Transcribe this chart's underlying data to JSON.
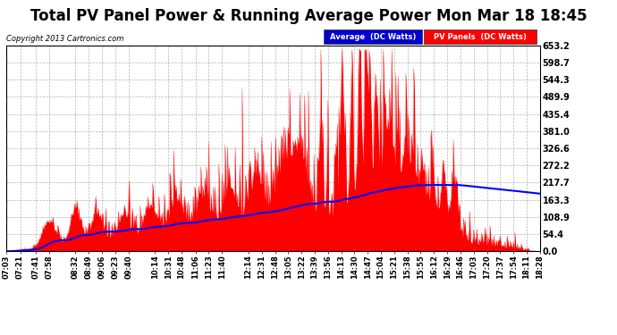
{
  "title": "Total PV Panel Power & Running Average Power Mon Mar 18 18:45",
  "copyright": "Copyright 2013 Cartronics.com",
  "legend_avg": "Average  (DC Watts)",
  "legend_pv": "PV Panels  (DC Watts)",
  "yticks": [
    0.0,
    54.4,
    108.9,
    163.3,
    217.7,
    272.2,
    326.6,
    381.0,
    435.4,
    489.9,
    544.3,
    598.7,
    653.2
  ],
  "ymax": 653.2,
  "ymin": 0.0,
  "bg_color": "#ffffff",
  "plot_bg_color": "#ffffff",
  "grid_color": "#aaaaaa",
  "pv_color": "#ff0000",
  "avg_color": "#0000ff",
  "title_fontsize": 12,
  "xtick_labels": [
    "07:03",
    "07:21",
    "07:41",
    "07:58",
    "08:32",
    "08:49",
    "09:06",
    "09:23",
    "09:40",
    "10:14",
    "10:31",
    "10:48",
    "11:06",
    "11:23",
    "11:40",
    "12:14",
    "12:31",
    "12:48",
    "13:05",
    "13:22",
    "13:39",
    "13:56",
    "14:13",
    "14:30",
    "14:47",
    "15:04",
    "15:21",
    "15:38",
    "15:55",
    "16:12",
    "16:29",
    "16:46",
    "17:03",
    "17:20",
    "17:37",
    "17:54",
    "18:11",
    "18:28"
  ]
}
